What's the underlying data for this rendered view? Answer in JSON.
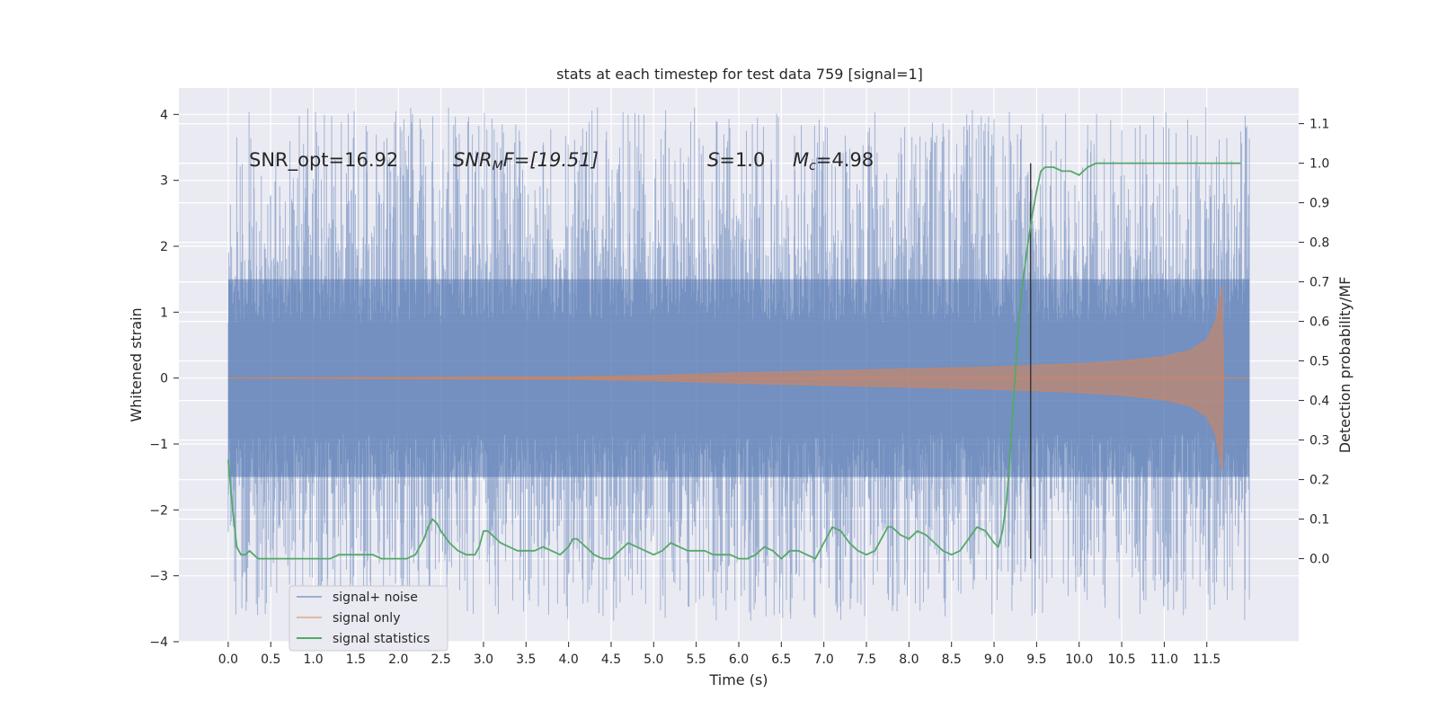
{
  "chart_data": {
    "type": "line",
    "title": "stats at each timestep for test data 759 [signal=1]",
    "xlabel": "Time (s)",
    "ylabel": "Whitened strain",
    "ylabel_right": "Detection probability/MF",
    "xlim": [
      -0.58,
      12.58
    ],
    "ylim": [
      -4.0,
      4.4
    ],
    "ylim_right": [
      -0.21,
      1.19
    ],
    "x_ticks": [
      "0.0",
      "0.5",
      "1.0",
      "1.5",
      "2.0",
      "2.5",
      "3.0",
      "3.5",
      "4.0",
      "4.5",
      "5.0",
      "5.5",
      "6.0",
      "6.5",
      "7.0",
      "7.5",
      "8.0",
      "8.5",
      "9.0",
      "9.5",
      "10.0",
      "10.5",
      "11.0",
      "11.5"
    ],
    "y_ticks": [
      "4",
      "3",
      "2",
      "1",
      "0",
      "−1",
      "−2",
      "−3",
      "−4"
    ],
    "y_right_ticks": [
      "1.1",
      "1.0",
      "0.9",
      "0.8",
      "0.7",
      "0.6",
      "0.5",
      "0.4",
      "0.3",
      "0.2",
      "0.1",
      "0.0"
    ],
    "annotations": {
      "snr_opt": "SNR_opt=16.92",
      "snr_mf_main": "SNR",
      "snr_mf_sub": "M",
      "snr_mf_rest": "F=[19.51]",
      "s_main": "S",
      "s_rest": "=1.0",
      "mc_main": "M",
      "mc_sub": "c",
      "mc_rest": "=4.98"
    },
    "vertical_line_x": 9.43,
    "grid": true,
    "legend_position": "lower-left",
    "series": [
      {
        "name": "signal+ noise",
        "color": "#4c72b0",
        "alpha": 0.5,
        "description_band": {
          "x_start": 0.0,
          "x_end": 12.0,
          "core_min": -1.5,
          "core_max": 1.5,
          "peak_max": 4.1,
          "peak_min": -3.6
        }
      },
      {
        "name": "signal only",
        "color": "#dd8452",
        "envelope": [
          [
            0.0,
            0.0
          ],
          [
            2.0,
            0.01
          ],
          [
            4.0,
            0.02
          ],
          [
            5.0,
            0.04
          ],
          [
            6.0,
            0.08
          ],
          [
            7.0,
            0.11
          ],
          [
            8.0,
            0.14
          ],
          [
            9.0,
            0.17
          ],
          [
            10.0,
            0.22
          ],
          [
            10.5,
            0.26
          ],
          [
            11.0,
            0.33
          ],
          [
            11.3,
            0.42
          ],
          [
            11.5,
            0.58
          ],
          [
            11.6,
            0.85
          ],
          [
            11.68,
            1.4
          ],
          [
            11.7,
            0.0
          ],
          [
            12.0,
            0.0
          ]
        ]
      },
      {
        "name": "signal statistics",
        "color": "#55a868",
        "axis": "right",
        "x": [
          0.0,
          0.05,
          0.1,
          0.15,
          0.2,
          0.25,
          0.3,
          0.35,
          0.4,
          0.45,
          0.5,
          0.6,
          0.7,
          0.8,
          0.9,
          1.0,
          1.1,
          1.2,
          1.3,
          1.4,
          1.5,
          1.6,
          1.7,
          1.8,
          1.9,
          2.0,
          2.1,
          2.2,
          2.3,
          2.35,
          2.4,
          2.45,
          2.5,
          2.6,
          2.7,
          2.8,
          2.9,
          2.95,
          3.0,
          3.05,
          3.1,
          3.2,
          3.3,
          3.4,
          3.5,
          3.6,
          3.7,
          3.8,
          3.9,
          4.0,
          4.05,
          4.1,
          4.2,
          4.3,
          4.4,
          4.5,
          4.6,
          4.7,
          4.8,
          4.9,
          5.0,
          5.1,
          5.2,
          5.3,
          5.4,
          5.5,
          5.6,
          5.7,
          5.8,
          5.9,
          6.0,
          6.1,
          6.2,
          6.3,
          6.4,
          6.5,
          6.6,
          6.7,
          6.8,
          6.9,
          7.0,
          7.1,
          7.2,
          7.3,
          7.4,
          7.5,
          7.6,
          7.7,
          7.75,
          7.8,
          7.9,
          8.0,
          8.1,
          8.2,
          8.3,
          8.4,
          8.5,
          8.6,
          8.7,
          8.8,
          8.9,
          9.0,
          9.05,
          9.1,
          9.15,
          9.2,
          9.25,
          9.3,
          9.35,
          9.4,
          9.45,
          9.5,
          9.55,
          9.6,
          9.7,
          9.8,
          9.9,
          10.0,
          10.1,
          10.2,
          10.3,
          10.5,
          11.0,
          11.5,
          11.9
        ],
        "y": [
          0.25,
          0.13,
          0.03,
          0.01,
          0.01,
          0.02,
          0.01,
          0.0,
          0.0,
          0.0,
          0.0,
          0.0,
          0.0,
          0.0,
          0.0,
          0.0,
          0.0,
          0.0,
          0.01,
          0.01,
          0.01,
          0.01,
          0.01,
          0.0,
          0.0,
          0.0,
          0.0,
          0.01,
          0.05,
          0.08,
          0.1,
          0.09,
          0.07,
          0.04,
          0.02,
          0.01,
          0.01,
          0.03,
          0.07,
          0.07,
          0.06,
          0.04,
          0.03,
          0.02,
          0.02,
          0.02,
          0.03,
          0.02,
          0.01,
          0.03,
          0.05,
          0.05,
          0.03,
          0.01,
          0.0,
          0.0,
          0.02,
          0.04,
          0.03,
          0.02,
          0.01,
          0.02,
          0.04,
          0.03,
          0.02,
          0.02,
          0.02,
          0.01,
          0.01,
          0.01,
          0.0,
          0.0,
          0.01,
          0.03,
          0.02,
          0.0,
          0.02,
          0.02,
          0.01,
          0.0,
          0.04,
          0.08,
          0.07,
          0.04,
          0.02,
          0.01,
          0.02,
          0.06,
          0.08,
          0.08,
          0.06,
          0.05,
          0.07,
          0.06,
          0.04,
          0.02,
          0.01,
          0.02,
          0.05,
          0.08,
          0.07,
          0.04,
          0.03,
          0.07,
          0.15,
          0.3,
          0.47,
          0.62,
          0.72,
          0.8,
          0.87,
          0.93,
          0.98,
          0.99,
          0.99,
          0.98,
          0.98,
          0.97,
          0.99,
          1.0,
          1.0,
          1.0,
          1.0,
          1.0,
          1.0
        ]
      }
    ]
  }
}
